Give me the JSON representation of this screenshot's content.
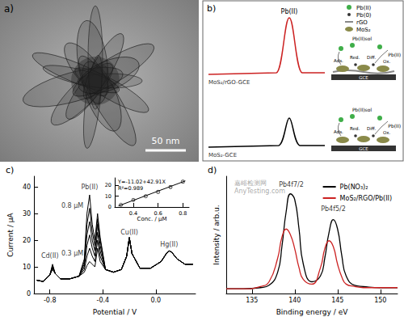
{
  "figure": {
    "panel_a": {
      "label": "a)",
      "scale_bar": "50 nm"
    },
    "panel_b": {
      "label": "b)",
      "legend": [
        "Pb(II)",
        "Pb(0)",
        "rGO",
        "MoS₂"
      ],
      "peak_label": "Pb(II)",
      "curves": [
        "MoS₂/rGO-GCE",
        "MoS₂-GCE"
      ],
      "steps": [
        "Ads.",
        "Red.",
        "Diff.",
        "Ox."
      ],
      "species": [
        "Pb(II)sol",
        "Pb(II)"
      ],
      "electrode": "GCE"
    },
    "watermark": [
      "嘉峪检测网",
      "AnyTesting.com"
    ]
  },
  "chart_data": [
    {
      "type": "line",
      "title": "c)",
      "x_label": "Potential / V",
      "y_label": "Current / μA",
      "x": [
        -0.9,
        -0.85,
        -0.8,
        -0.78,
        -0.76,
        -0.72,
        -0.65,
        -0.58,
        -0.54,
        -0.52,
        -0.5,
        -0.48,
        -0.46,
        -0.44,
        -0.42,
        -0.38,
        -0.32,
        -0.26,
        -0.22,
        -0.2,
        -0.18,
        -0.12,
        -0.04,
        0.04,
        0.08,
        0.1,
        0.12,
        0.16,
        0.22,
        0.28
      ],
      "series": [
        {
          "color": "#000000",
          "values": [
            5,
            4.5,
            7,
            9,
            7.5,
            5.5,
            5.5,
            6.5,
            8,
            10.5,
            12,
            11,
            10,
            17,
            12,
            9,
            8,
            9,
            14,
            21,
            15,
            9.5,
            9.5,
            12,
            15,
            16,
            15.5,
            13,
            11,
            11
          ]
        },
        {
          "color": "#000000",
          "values": [
            5,
            4.5,
            7,
            9.5,
            7.5,
            5.5,
            5.5,
            6.5,
            9,
            14,
            17,
            14,
            12,
            20,
            14,
            9,
            8,
            9,
            14,
            21,
            15,
            9.5,
            9.5,
            12,
            15,
            16,
            15.5,
            13,
            11,
            11
          ]
        },
        {
          "color": "#000000",
          "values": [
            5,
            4.5,
            7,
            10,
            7.5,
            5.5,
            5.5,
            6.5,
            10,
            18,
            22,
            17,
            14,
            23,
            16,
            9,
            8,
            9,
            14,
            21,
            15,
            9.5,
            9.5,
            12,
            15,
            16,
            15.5,
            13,
            11,
            11
          ]
        },
        {
          "color": "#000000",
          "values": [
            5,
            4.5,
            7,
            10,
            7.5,
            5.5,
            5.5,
            6.5,
            11,
            22,
            27,
            20,
            16,
            26,
            18,
            9,
            8,
            9,
            14,
            21,
            15,
            9.5,
            9.5,
            12,
            15,
            16,
            15.5,
            13,
            11,
            11
          ]
        },
        {
          "color": "#000000",
          "values": [
            5,
            4.5,
            7,
            10.5,
            7.5,
            5.5,
            5.5,
            6.5,
            12,
            26,
            32,
            23,
            18,
            28,
            20,
            9,
            8,
            9,
            14,
            21,
            15,
            9.5,
            9.5,
            12,
            15,
            16,
            15.5,
            13,
            11,
            11
          ]
        },
        {
          "color": "#000000",
          "values": [
            5,
            4.5,
            7,
            11,
            7.5,
            5.5,
            5.5,
            6.5,
            13,
            30,
            37,
            26,
            20,
            30,
            21,
            9,
            8,
            9,
            14,
            21,
            15,
            9.5,
            9.5,
            12,
            15,
            16,
            15.5,
            13,
            11,
            11
          ]
        }
      ],
      "xlim": [
        -0.92,
        0.3
      ],
      "xticks": [
        -0.8,
        -0.4,
        {
          "value": 0,
          "label": "0.0"
        }
      ],
      "ylim": [
        0,
        44
      ],
      "yticks": [
        0,
        10,
        20,
        30,
        40
      ],
      "annotations": [
        {
          "text": "Cd(II)",
          "x": -0.8,
          "y": 14
        },
        {
          "text": "Pb(II)",
          "x": -0.5,
          "y": 40
        },
        {
          "text": "0.8 μM",
          "x": -0.63,
          "y": 33
        },
        {
          "text": "0.3 μM",
          "x": -0.63,
          "y": 15
        },
        {
          "text": "Cu(II)",
          "x": -0.2,
          "y": 23
        },
        {
          "text": "Hg(II)",
          "x": 0.1,
          "y": 18.5
        }
      ],
      "inset": {
        "type": "scatter",
        "x_label": "Conc. / μM",
        "marker": "circle",
        "x": [
          0.3,
          0.4,
          0.5,
          0.6,
          0.7,
          0.8
        ],
        "values": [
          2,
          6.5,
          10,
          14,
          18.5,
          23.5
        ],
        "errors": [
          0.6,
          0.8,
          0.8,
          1,
          1,
          1
        ],
        "fit": {
          "x": [
            0.28,
            0.82
          ],
          "values": [
            1.0,
            24.2
          ]
        },
        "xlim": [
          0.25,
          0.85
        ],
        "xticks": [
          0.4,
          0.6,
          0.8
        ],
        "ylim": [
          0,
          27
        ],
        "yticks": [
          0,
          10,
          20
        ],
        "equation": "Y=-11.02+42.91X",
        "r_squared": "R²=0.989"
      }
    },
    {
      "type": "line",
      "title": "d)",
      "x_label": "Binding energy / eV",
      "y_label": "Intensity / arb.u.",
      "x": [
        132,
        134,
        136,
        137,
        138,
        138.5,
        139,
        139.5,
        140,
        140.5,
        141,
        142,
        143,
        143.5,
        144,
        144.5,
        145,
        145.5,
        146,
        147,
        148,
        150,
        152
      ],
      "series": [
        {
          "name": "Pb(NO₃)₂",
          "color": "#000000",
          "values": [
            0.04,
            0.04,
            0.05,
            0.07,
            0.18,
            0.4,
            0.7,
            0.85,
            0.8,
            0.55,
            0.25,
            0.1,
            0.15,
            0.3,
            0.52,
            0.63,
            0.55,
            0.32,
            0.15,
            0.07,
            0.06,
            0.05,
            0.05
          ]
        },
        {
          "name": "MoS₂/RGO/Pb(II)",
          "color": "#cc2222",
          "values": [
            0.04,
            0.04,
            0.06,
            0.1,
            0.3,
            0.48,
            0.55,
            0.5,
            0.38,
            0.22,
            0.12,
            0.08,
            0.22,
            0.38,
            0.45,
            0.4,
            0.25,
            0.14,
            0.08,
            0.06,
            0.05,
            0.05,
            0.05
          ]
        }
      ],
      "xlim": [
        132,
        152
      ],
      "xticks": [
        135,
        140,
        145,
        150
      ],
      "ylim": [
        0,
        1
      ],
      "tick_labels": "x",
      "legend": "upper right",
      "annotations": [
        {
          "text": "Pb4f7/2",
          "x": 139.6,
          "y": 0.93
        },
        {
          "text": "Pb4f5/2",
          "x": 144.5,
          "y": 0.72
        }
      ]
    }
  ]
}
